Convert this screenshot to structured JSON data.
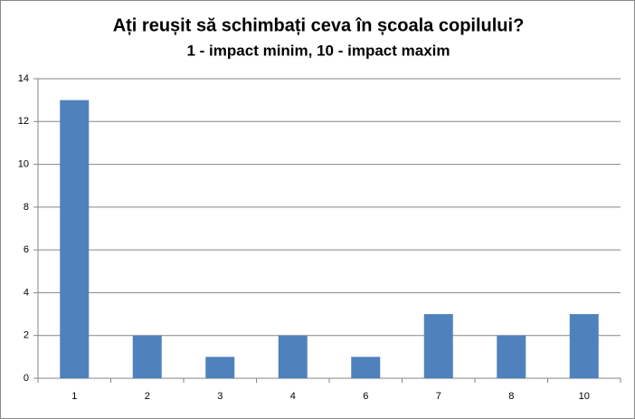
{
  "chart_data": {
    "type": "bar",
    "title": "Ați reușit să schimbați ceva în școala copilului?",
    "subtitle": "1 - impact minim, 10 - impact maxim",
    "categories": [
      "1",
      "2",
      "3",
      "4",
      "6",
      "7",
      "8",
      "10"
    ],
    "values": [
      13,
      2,
      1,
      2,
      1,
      3,
      2,
      3
    ],
    "color": "#4f81bd",
    "ylim": [
      0,
      14
    ],
    "yticks": [
      0,
      2,
      4,
      6,
      8,
      10,
      12,
      14
    ],
    "grid": true
  }
}
